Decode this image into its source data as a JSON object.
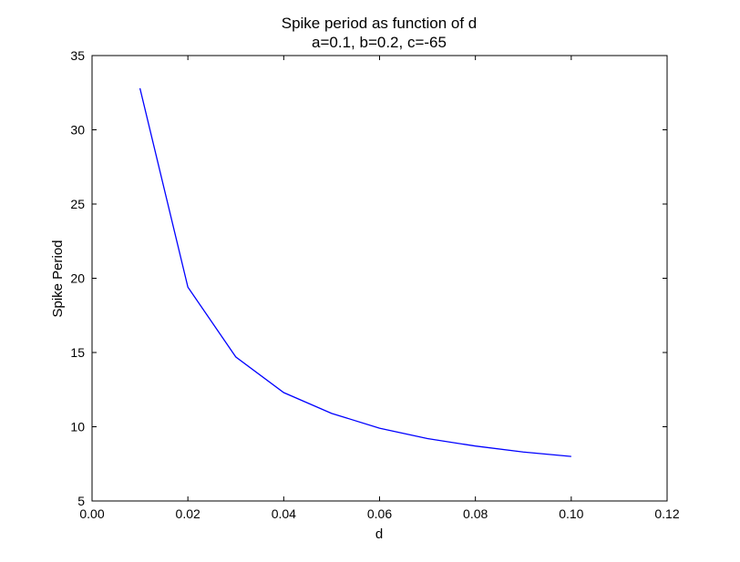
{
  "chart_data": {
    "type": "line",
    "title": "Spike period as function of d",
    "subtitle": "a=0.1, b=0.2, c=-65",
    "xlabel": "d",
    "ylabel": "Spike Period",
    "xlim": [
      0.0,
      0.12
    ],
    "ylim": [
      5,
      35
    ],
    "xticks": [
      "0.00",
      "0.02",
      "0.04",
      "0.06",
      "0.08",
      "0.10",
      "0.12"
    ],
    "yticks": [
      "5",
      "10",
      "15",
      "20",
      "25",
      "30",
      "35"
    ],
    "grid": false,
    "series": [
      {
        "color": "#0000ff",
        "x": [
          0.01,
          0.02,
          0.03,
          0.04,
          0.05,
          0.06,
          0.07,
          0.08,
          0.09,
          0.1
        ],
        "y": [
          32.8,
          19.4,
          14.7,
          12.3,
          10.9,
          9.9,
          9.2,
          8.7,
          8.3,
          8.0
        ]
      }
    ]
  }
}
